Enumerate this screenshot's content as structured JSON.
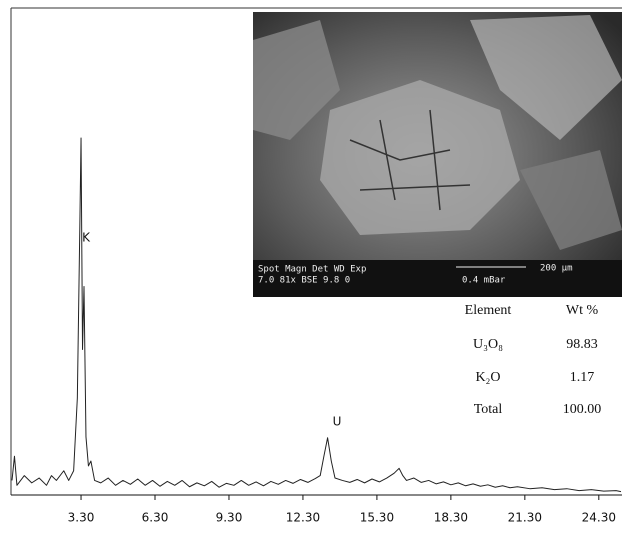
{
  "chart_data": {
    "type": "line",
    "x": [
      0.5,
      0.6,
      0.7,
      1.0,
      1.3,
      1.6,
      1.9,
      2.1,
      2.3,
      2.6,
      2.8,
      3.0,
      3.15,
      3.25,
      3.3,
      3.36,
      3.42,
      3.5,
      3.6,
      3.7,
      3.85,
      4.1,
      4.4,
      4.7,
      5.0,
      5.3,
      5.6,
      5.9,
      6.2,
      6.5,
      6.8,
      7.1,
      7.4,
      7.7,
      8.0,
      8.3,
      8.6,
      8.9,
      9.2,
      9.5,
      9.8,
      10.1,
      10.4,
      10.7,
      11.0,
      11.3,
      11.6,
      11.9,
      12.2,
      12.5,
      12.8,
      13.0,
      13.15,
      13.3,
      13.45,
      13.6,
      13.9,
      14.2,
      14.5,
      14.8,
      15.1,
      15.4,
      15.7,
      16.0,
      16.2,
      16.35,
      16.5,
      16.8,
      17.1,
      17.4,
      17.7,
      18.0,
      18.3,
      18.6,
      18.9,
      19.2,
      19.5,
      19.8,
      20.1,
      20.4,
      20.7,
      21.0,
      21.5,
      22.0,
      22.5,
      23.0,
      23.5,
      24.0,
      24.5,
      25.0,
      25.2
    ],
    "values": [
      3,
      8,
      2,
      4,
      2.5,
      3.5,
      2,
      4,
      3,
      5,
      3,
      5,
      20,
      55,
      73.6,
      30,
      43,
      12,
      6,
      7,
      3,
      2.5,
      3.5,
      2,
      3,
      2.2,
      3.3,
      2,
      3,
      1.8,
      2.8,
      2,
      3,
      1.7,
      2.5,
      1.9,
      2.8,
      1.6,
      2.4,
      2,
      3,
      2,
      2.7,
      1.9,
      2.8,
      2.2,
      3,
      2.4,
      3.2,
      2.6,
      3.4,
      4,
      8,
      11.8,
      7,
      3.5,
      3,
      2.6,
      3.2,
      2.5,
      3.3,
      2.7,
      3.5,
      4.5,
      5.5,
      4,
      3,
      3.5,
      2.6,
      3,
      2.3,
      2.7,
      2.1,
      2.5,
      1.9,
      2.3,
      1.8,
      2.1,
      1.6,
      1.9,
      1.5,
      1.7,
      1.3,
      1.5,
      1.1,
      1.3,
      0.9,
      1.1,
      0.8,
      0.9,
      0.7
    ],
    "color": "#222222",
    "xlim": [
      0.5,
      25.2
    ],
    "ylim": [
      0,
      100
    ],
    "xticks": [
      {
        "value": 3.3,
        "label": "3.30"
      },
      {
        "value": 6.3,
        "label": "6.30"
      },
      {
        "value": 9.3,
        "label": "9.30"
      },
      {
        "value": 12.3,
        "label": "12.30"
      },
      {
        "value": 15.3,
        "label": "15.30"
      },
      {
        "value": 18.3,
        "label": "18.30"
      },
      {
        "value": 21.3,
        "label": "21.30"
      },
      {
        "value": 24.3,
        "label": "24.30"
      }
    ],
    "peak_labels": [
      "K",
      "U"
    ]
  },
  "inset": {
    "info_header": "Spot Magn   Det  WD  Exp",
    "info_values": "7.0   81x   BSE 9.8   0",
    "pressure": "0.4 mBar",
    "scale": "200 µm"
  },
  "table": {
    "header": [
      "Element",
      "Wt %"
    ],
    "rows": [
      [
        "U₃O₈",
        "98.83"
      ],
      [
        "K₂O",
        "1.17"
      ],
      [
        "Total",
        "100.00"
      ]
    ]
  }
}
